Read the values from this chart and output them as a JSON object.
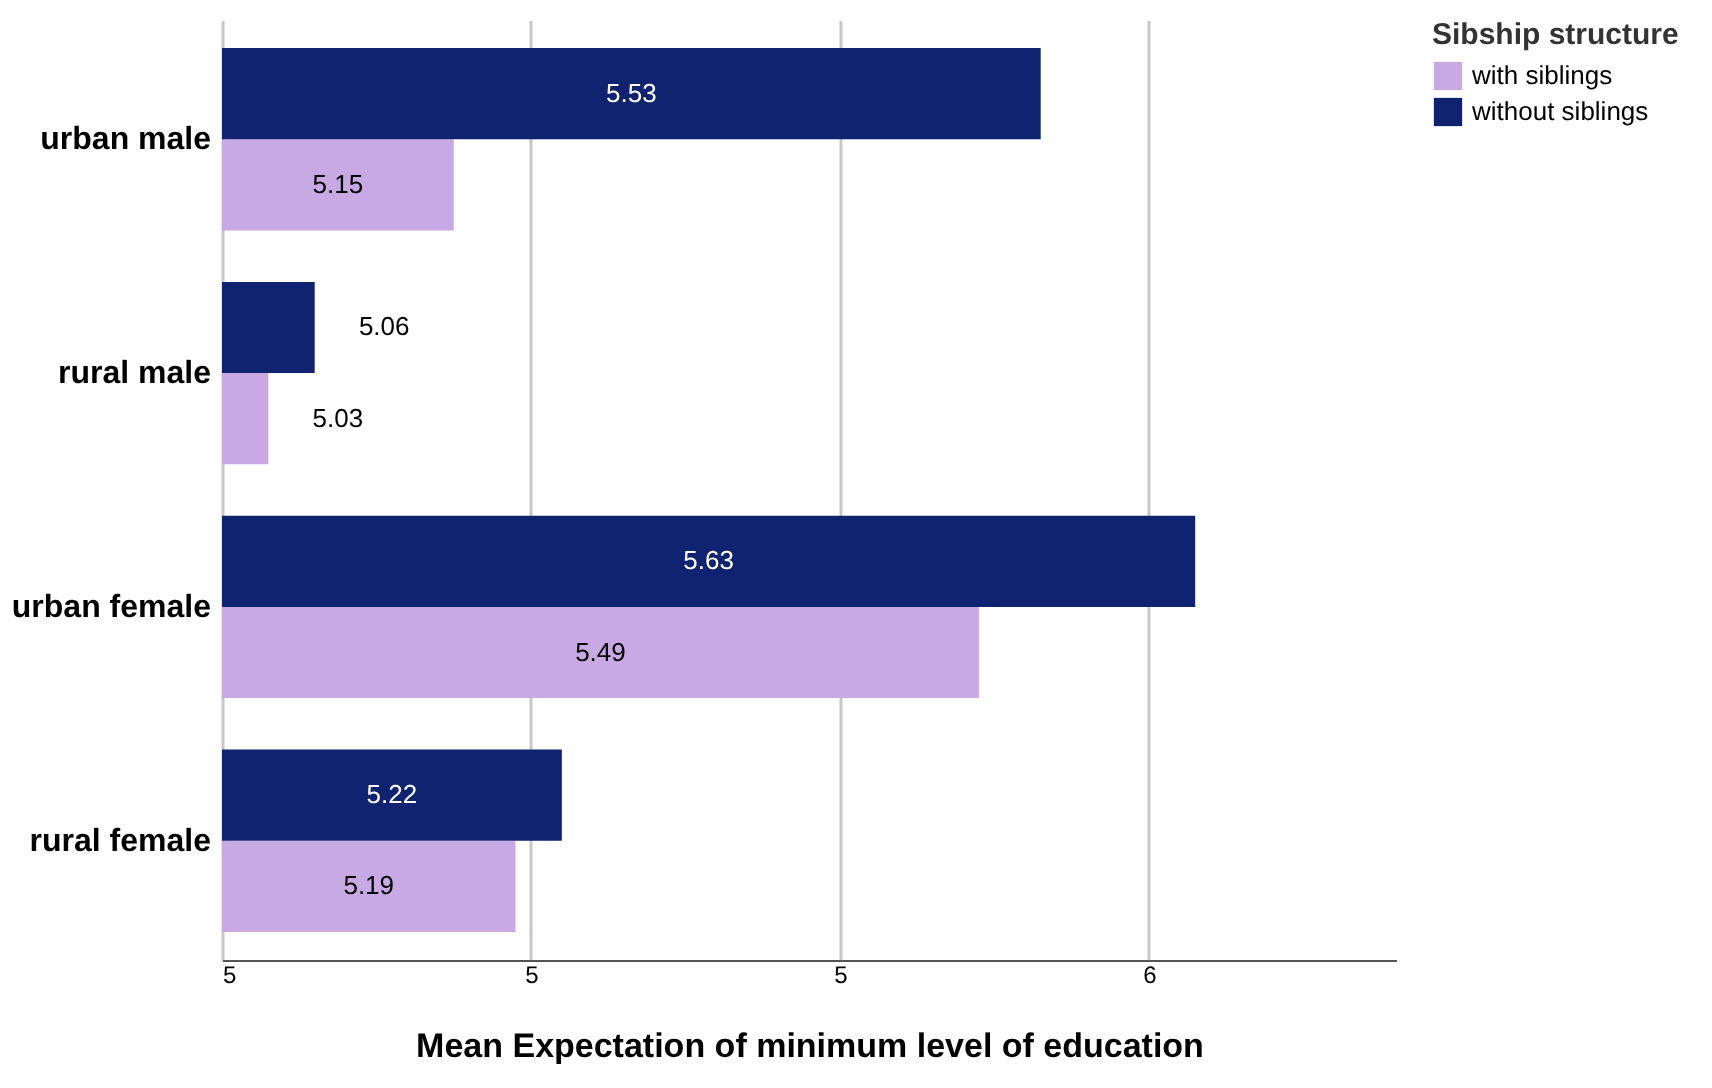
{
  "chart_data": {
    "type": "bar",
    "orientation": "horizontal",
    "xlabel": "Mean Expectation of minimum level of education",
    "legend_title": "Sibship structure",
    "categories": [
      "urban male",
      "rural male",
      "urban female",
      "rural female"
    ],
    "series": [
      {
        "name": "with siblings",
        "color": "#c9a9e3",
        "values": [
          5.15,
          5.03,
          5.49,
          5.19
        ]
      },
      {
        "name": "without siblings",
        "color": "#0f2370",
        "values": [
          5.53,
          5.06,
          5.63,
          5.22
        ]
      }
    ],
    "xlim": [
      5,
      5.76
    ],
    "xticks": [
      5,
      {
        "value": 5.2,
        "label": "5"
      },
      {
        "value": 5.4,
        "label": "5"
      },
      {
        "value": 5.6,
        "label": "6"
      }
    ],
    "grid": "x",
    "legend": "top right",
    "data_labels": true
  }
}
